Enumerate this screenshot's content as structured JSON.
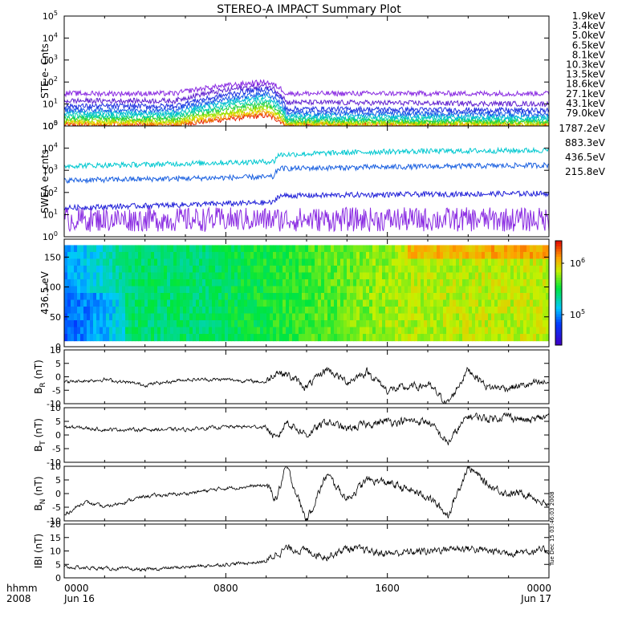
{
  "title": "STEREO-A IMPACT Summary Plot",
  "stamp": "Tue Dec 15 03:46:03 2008",
  "time_axis": {
    "corner_top": "hhmm",
    "corner_bottom": "2008",
    "ticks": [
      {
        "label": "0000",
        "sub": "Jun 16",
        "hour": 0
      },
      {
        "label": "0800",
        "sub": "",
        "hour": 8
      },
      {
        "label": "1600",
        "sub": "",
        "hour": 16
      },
      {
        "label": "0000",
        "sub": "Jun 17",
        "hour": 24
      }
    ]
  },
  "chart_data": [
    {
      "id": "ste",
      "type": "line",
      "ylabel": "STE e- Cnts",
      "yscale": "log",
      "ylim": [
        1,
        100000
      ],
      "y_ticks": [
        {
          "mant": "10",
          "exp": "0",
          "v": 1
        },
        {
          "mant": "10",
          "exp": "1",
          "v": 10
        },
        {
          "mant": "10",
          "exp": "2",
          "v": 100
        },
        {
          "mant": "10",
          "exp": "3",
          "v": 1000
        },
        {
          "mant": "10",
          "exp": "4",
          "v": 10000
        },
        {
          "mant": "10",
          "exp": "5",
          "v": 100000
        }
      ],
      "x_hours": [
        0,
        5.5,
        7.5,
        10.0,
        11.0,
        24
      ],
      "series": [
        {
          "name": "1.9keV",
          "color": "#8a2be2",
          "values": [
            30,
            30,
            60,
            100,
            30,
            30
          ]
        },
        {
          "name": "3.4keV",
          "color": "#6020d0",
          "values": [
            14,
            14,
            35,
            70,
            12,
            10
          ]
        },
        {
          "name": "5.0keV",
          "color": "#2030e0",
          "values": [
            8,
            8,
            20,
            50,
            6,
            5
          ]
        },
        {
          "name": "6.5keV",
          "color": "#1a5ae8",
          "values": [
            5.5,
            5.5,
            14,
            30,
            4,
            3.5
          ]
        },
        {
          "name": "8.1keV",
          "color": "#00b8d8",
          "values": [
            4,
            4,
            10,
            22,
            3,
            2.5
          ]
        },
        {
          "name": "10.3keV",
          "color": "#00d0b0",
          "values": [
            3,
            3,
            7,
            15,
            2.2,
            2
          ]
        },
        {
          "name": "13.5keV",
          "color": "#20d040",
          "values": [
            2.2,
            2.2,
            5,
            10,
            1.8,
            1.6
          ]
        },
        {
          "name": "18.6keV",
          "color": "#90e000",
          "values": [
            1.8,
            1.8,
            3.5,
            7,
            1.5,
            1.4
          ]
        },
        {
          "name": "27.1keV",
          "color": "#e8e000",
          "values": [
            1.5,
            1.5,
            2.8,
            5,
            1.3,
            1.2
          ]
        },
        {
          "name": "43.1keV",
          "color": "#f09000",
          "values": [
            1.3,
            1.3,
            2.2,
            4,
            1.2,
            1.1
          ]
        },
        {
          "name": "79.0keV",
          "color": "#e82000",
          "values": [
            1.1,
            1.1,
            1.8,
            3,
            1.1,
            1.0
          ]
        }
      ]
    },
    {
      "id": "swea",
      "type": "line",
      "ylabel": "SWEA e- cnts",
      "yscale": "log",
      "ylim": [
        1,
        100000
      ],
      "y_ticks": [
        {
          "mant": "10",
          "exp": "0",
          "v": 1
        },
        {
          "mant": "10",
          "exp": "1",
          "v": 10
        },
        {
          "mant": "10",
          "exp": "2",
          "v": 100
        },
        {
          "mant": "10",
          "exp": "3",
          "v": 1000
        },
        {
          "mant": "10",
          "exp": "4",
          "v": 10000
        },
        {
          "mant": "10",
          "exp": "5",
          "v": 100000
        }
      ],
      "x_hours": [
        0,
        4,
        10.4,
        10.6,
        16,
        24
      ],
      "series": [
        {
          "name": "1787.2eV",
          "color": "#8a2be2",
          "values": [
            6,
            6,
            6,
            6,
            6,
            6
          ]
        },
        {
          "name": "883.3eV",
          "color": "#2020d8",
          "values": [
            20,
            25,
            35,
            70,
            80,
            90
          ]
        },
        {
          "name": "436.5eV",
          "color": "#1a60e0",
          "values": [
            350,
            400,
            500,
            1200,
            1400,
            1700
          ]
        },
        {
          "name": "215.8eV",
          "color": "#00c8d0",
          "values": [
            1600,
            1800,
            2500,
            5000,
            7000,
            8000
          ]
        }
      ]
    },
    {
      "id": "spec",
      "type": "heatmap",
      "ylabel": "436.5 eV",
      "ylim": [
        0,
        180
      ],
      "y_ticks": [
        0,
        50,
        100,
        150
      ],
      "colorbar": {
        "ticks": [
          {
            "mant": "10",
            "exp": "5"
          },
          {
            "mant": "10",
            "exp": "6"
          }
        ]
      },
      "x_hours": [
        0,
        3.5,
        7,
        10.5,
        14.5,
        17,
        24
      ],
      "values": [
        0.3,
        0.5,
        0.5,
        0.57,
        0.65,
        0.7,
        0.72
      ]
    },
    {
      "id": "br",
      "type": "line",
      "ylabel_main": "B",
      "ylabel_sub": "R",
      "ylabel_unit": "(nT)",
      "ylim": [
        -10,
        10
      ],
      "y_ticks": [
        -10,
        -5,
        0,
        5,
        10
      ],
      "x_hours": [
        0,
        2,
        4,
        6,
        8,
        10,
        10.5,
        11,
        12,
        13,
        14,
        15,
        16,
        18,
        19,
        20,
        21,
        22,
        23,
        24
      ],
      "values": [
        -2,
        -1,
        -3,
        -1,
        -1,
        -2,
        2,
        1,
        -4,
        3,
        -2,
        2,
        -5,
        -3,
        -10,
        3,
        -4,
        -4,
        -3,
        -2
      ]
    },
    {
      "id": "bt",
      "type": "line",
      "ylabel_main": "B",
      "ylabel_sub": "T",
      "ylabel_unit": "(nT)",
      "ylim": [
        -10,
        10
      ],
      "y_ticks": [
        -10,
        -5,
        0,
        5,
        10
      ],
      "x_hours": [
        0,
        2,
        4,
        6,
        8,
        10,
        10.5,
        11,
        12,
        13,
        14,
        15,
        16,
        18,
        19,
        20,
        21,
        22,
        23,
        24
      ],
      "values": [
        3,
        2,
        2,
        2,
        3,
        3,
        -2,
        5,
        0,
        5,
        2,
        4,
        5,
        5,
        -3,
        7,
        6,
        7,
        5,
        7
      ]
    },
    {
      "id": "bn",
      "type": "line",
      "ylabel_main": "B",
      "ylabel_sub": "N",
      "ylabel_unit": "(nT)",
      "ylim": [
        -10,
        10
      ],
      "y_ticks": [
        -10,
        -5,
        0,
        5,
        10
      ],
      "x_hours": [
        0,
        1,
        2,
        4,
        6,
        8,
        10,
        10.5,
        11,
        12,
        13,
        14,
        15,
        16,
        18,
        19,
        20,
        21,
        22,
        23,
        24
      ],
      "values": [
        -8,
        -3,
        -5,
        -1,
        0,
        2,
        3,
        -2,
        10,
        -10,
        7,
        -2,
        5,
        4,
        -1,
        -8,
        10,
        3,
        0,
        0,
        -5
      ]
    },
    {
      "id": "bmag",
      "type": "line",
      "ylabel_main": "IBI",
      "ylabel_sub": "",
      "ylabel_unit": "(nT)",
      "ylim": [
        0,
        20
      ],
      "y_ticks": [
        0,
        5,
        10,
        15,
        20
      ],
      "x_hours": [
        0,
        2,
        4,
        6,
        8,
        10,
        10.5,
        11,
        12,
        13,
        14,
        15,
        16,
        18,
        19,
        20,
        21,
        22,
        23,
        24
      ],
      "values": [
        4,
        3.5,
        3,
        4,
        5,
        6,
        9,
        11,
        10,
        8,
        11,
        10,
        9,
        10,
        11,
        11,
        10,
        9.5,
        10,
        10
      ]
    }
  ]
}
